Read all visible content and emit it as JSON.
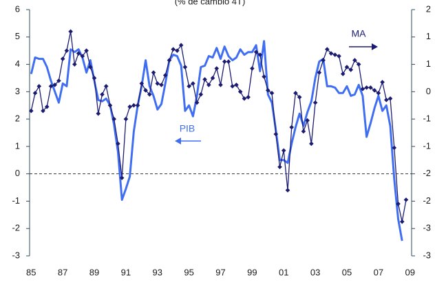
{
  "chart_data": {
    "type": "line",
    "title": "(% de cambio 4T)",
    "xlim": [
      1984.9,
      2009.1
    ],
    "xticks": [
      {
        "value": 1985,
        "label": "85"
      },
      {
        "value": 1987,
        "label": "87"
      },
      {
        "value": 1989,
        "label": "89"
      },
      {
        "value": 1991,
        "label": "91"
      },
      {
        "value": 1993,
        "label": "93"
      },
      {
        "value": 1995,
        "label": "95"
      },
      {
        "value": 1997,
        "label": "97"
      },
      {
        "value": 1999,
        "label": "99"
      },
      {
        "value": 2001,
        "label": "01"
      },
      {
        "value": 2003,
        "label": "03"
      },
      {
        "value": 2005,
        "label": "05"
      },
      {
        "value": 2007,
        "label": "07"
      },
      {
        "value": 2009,
        "label": "09"
      }
    ],
    "ylim": [
      -3,
      6
    ],
    "yticks": [
      -3,
      -2,
      -1,
      0,
      1,
      2,
      3,
      4,
      5,
      6
    ],
    "y2lim": [
      -3,
      1.5
    ],
    "y2ticks": [
      -3,
      {
        "value": -2.5,
        "label": "-3"
      },
      -2,
      {
        "value": -1.5,
        "label": "-2"
      },
      -1,
      {
        "value": -0.5,
        "label": "-1"
      },
      0,
      {
        "value": 0.5,
        "label": "1"
      },
      1,
      {
        "value": 1.5,
        "label": "2"
      }
    ],
    "zero_line": true,
    "annotations": [
      {
        "text": "PIB",
        "series": 0,
        "direction": "left"
      },
      {
        "text": "MA",
        "series": 1,
        "direction": "right"
      }
    ],
    "series": [
      {
        "name": "PIB",
        "color": "#3f6ef2",
        "axis": "y",
        "markers": false,
        "x": [
          1985,
          1985.25,
          1985.5,
          1985.75,
          1986,
          1986.25,
          1986.5,
          1986.75,
          1987,
          1987.25,
          1987.5,
          1987.75,
          1988,
          1988.25,
          1988.5,
          1988.75,
          1989,
          1989.25,
          1989.5,
          1989.75,
          1990,
          1990.25,
          1990.5,
          1990.75,
          1991,
          1991.25,
          1991.5,
          1991.75,
          1992,
          1992.25,
          1992.5,
          1992.75,
          1993,
          1993.25,
          1993.5,
          1993.75,
          1994,
          1994.25,
          1994.5,
          1994.75,
          1995,
          1995.25,
          1995.5,
          1995.75,
          1996,
          1996.25,
          1996.5,
          1996.75,
          1997,
          1997.25,
          1997.5,
          1997.75,
          1998,
          1998.25,
          1998.5,
          1998.75,
          1999,
          1999.25,
          1999.5,
          1999.75,
          2000,
          2000.25,
          2000.5,
          2000.75,
          2001,
          2001.25,
          2001.5,
          2001.75,
          2002,
          2002.25,
          2002.5,
          2002.75,
          2003,
          2003.25,
          2003.5,
          2003.75,
          2004,
          2004.25,
          2004.5,
          2004.75,
          2005,
          2005.25,
          2005.5,
          2005.75,
          2006,
          2006.25,
          2006.5,
          2006.75,
          2007,
          2007.25,
          2007.5,
          2007.75,
          2008,
          2008.25,
          2008.5
        ],
        "values": [
          3.65,
          4.25,
          4.2,
          4.2,
          3.9,
          3.4,
          3.0,
          2.6,
          3.3,
          3.2,
          4.55,
          4.45,
          4.55,
          4.25,
          3.7,
          4.15,
          3.4,
          2.7,
          2.65,
          2.75,
          2.5,
          1.8,
          0.8,
          -0.95,
          -0.55,
          -0.1,
          1.55,
          2.5,
          3.2,
          4.15,
          3.2,
          2.85,
          2.35,
          2.55,
          3.3,
          4.15,
          4.35,
          4.3,
          3.95,
          2.3,
          2.5,
          2.1,
          2.85,
          3.9,
          3.95,
          4.3,
          4.25,
          4.6,
          4.2,
          4.65,
          4.3,
          4.15,
          4.25,
          4.55,
          4.35,
          4.45,
          4.45,
          4.7,
          3.75,
          4.85,
          2.9,
          2.6,
          1.6,
          0.5,
          0.5,
          0.4,
          1.1,
          1.7,
          2.2,
          1.75,
          2.25,
          2.65,
          3.5,
          4.1,
          4.2,
          3.2,
          3.2,
          3.15,
          2.95,
          2.95,
          3.2,
          2.85,
          2.9,
          3.25,
          2.85,
          1.35,
          1.85,
          2.4,
          2.85,
          2.3,
          2.5,
          1.75,
          -0.2,
          -1.65,
          -2.45
        ]
      },
      {
        "name": "MA",
        "color": "#1b1b72",
        "axis": "y2",
        "markers": true,
        "x": [
          1985,
          1985.25,
          1985.5,
          1985.75,
          1986,
          1986.25,
          1986.5,
          1986.75,
          1987,
          1987.25,
          1987.5,
          1987.75,
          1988,
          1988.25,
          1988.5,
          1988.75,
          1989,
          1989.25,
          1989.5,
          1989.75,
          1990,
          1990.25,
          1990.5,
          1990.75,
          1991,
          1991.25,
          1991.5,
          1991.75,
          1992,
          1992.25,
          1992.5,
          1992.75,
          1993,
          1993.25,
          1993.5,
          1993.75,
          1994,
          1994.25,
          1994.5,
          1994.75,
          1995,
          1995.25,
          1995.5,
          1995.75,
          1996,
          1996.25,
          1996.5,
          1996.75,
          1997,
          1997.25,
          1997.5,
          1997.75,
          1998,
          1998.25,
          1998.5,
          1998.75,
          1999,
          1999.25,
          1999.5,
          1999.75,
          2000,
          2000.25,
          2000.5,
          2000.75,
          2001,
          2001.25,
          2001.5,
          2001.75,
          2002,
          2002.25,
          2002.5,
          2002.75,
          2003,
          2003.25,
          2003.5,
          2003.75,
          2004,
          2004.25,
          2004.5,
          2004.75,
          2005,
          2005.25,
          2005.5,
          2005.75,
          2006,
          2006.25,
          2006.5,
          2006.75,
          2007,
          2007.25,
          2007.5,
          2007.75,
          2008,
          2008.25,
          2008.5,
          2008.75
        ],
        "values": [
          -0.35,
          -0.025,
          0.1,
          -0.35,
          -0.275,
          0.1,
          0.125,
          0.2,
          0.6,
          0.75,
          1.1,
          0.5,
          0.7,
          0.65,
          0.75,
          0.45,
          0.25,
          -0.4,
          -0.05,
          0.1,
          -0.25,
          -0.5,
          -0.95,
          -1.575,
          -0.5,
          -0.275,
          -0.25,
          -0.25,
          0.15,
          0.025,
          -0.05,
          0.35,
          0.15,
          0.125,
          0.3,
          0.575,
          0.775,
          0.75,
          0.85,
          0.45,
          0.1,
          0.15,
          -0.2,
          -0.05,
          0.225,
          0.125,
          0.25,
          0.425,
          0.125,
          0.55,
          0.55,
          0.1,
          0.125,
          0,
          -0.125,
          -0.1,
          0.425,
          0.725,
          0.675,
          0.275,
          0.025,
          -0.025,
          -0.775,
          -1.375,
          -1.075,
          -1.8,
          -0.65,
          -0.025,
          -0.1,
          -0.725,
          -0.525,
          -0.95,
          -0.2,
          0.35,
          0.575,
          0.775,
          0.7,
          0.675,
          0.65,
          0.325,
          0.45,
          0.4,
          0.575,
          0.5,
          0.05,
          0.075,
          0.075,
          0.025,
          -0.025,
          0.175,
          -0.15,
          -0.125,
          -1.025,
          -2.05,
          -2.375,
          -1.975
        ]
      }
    ]
  }
}
